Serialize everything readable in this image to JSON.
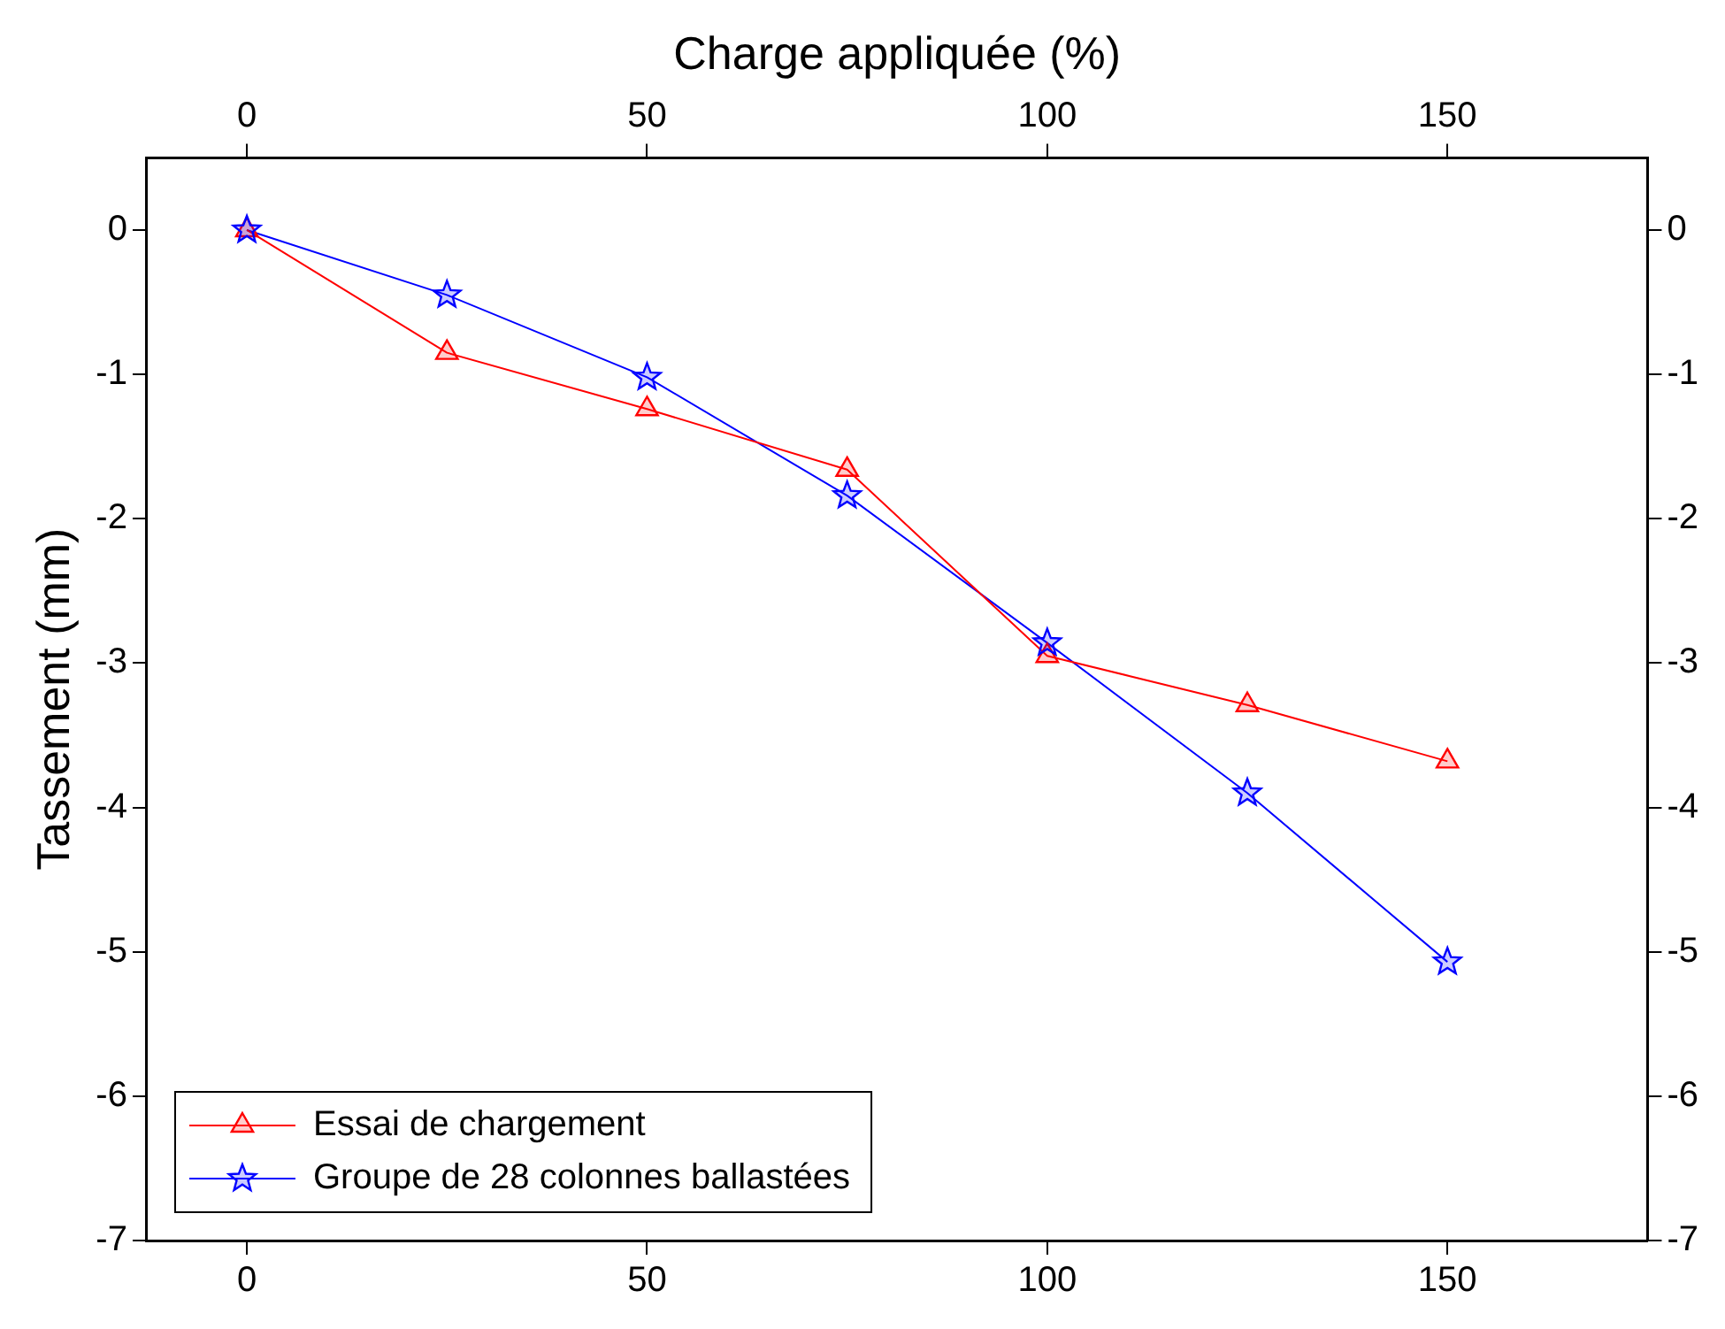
{
  "chart_data": {
    "type": "line",
    "x2label": "Charge appliquée (%)",
    "ylabel": "Tassement (mm)",
    "x": [
      0,
      25,
      50,
      75,
      100,
      125,
      150
    ],
    "series": [
      {
        "name": "Essai de chargement",
        "color": "#ff0000",
        "marker": "triangle",
        "values": [
          0,
          -0.85,
          -1.24,
          -1.66,
          -2.95,
          -3.29,
          -3.68
        ]
      },
      {
        "name": "Groupe de 28 colonnes ballastées",
        "color": "#0000ff",
        "marker": "star",
        "values": [
          0,
          -0.45,
          -1.02,
          -1.84,
          -2.86,
          -3.9,
          -5.07
        ]
      }
    ],
    "xlim": [
      -12.5,
      175
    ],
    "xticks": [
      0,
      50,
      100,
      150
    ],
    "x2lim": [
      -12.5,
      175
    ],
    "x2ticks": [
      0,
      50,
      100,
      150
    ],
    "ylim": [
      -7,
      0.5
    ],
    "yticks": [
      0,
      -1,
      -2,
      -3,
      -4,
      -5,
      -6,
      -7
    ],
    "y2lim": [
      -7,
      0.5
    ],
    "y2ticks": [
      0,
      -1,
      -2,
      -3,
      -4,
      -5,
      -6,
      -7
    ],
    "grid": false,
    "legend": "bottom left",
    "line_style": "solid"
  }
}
